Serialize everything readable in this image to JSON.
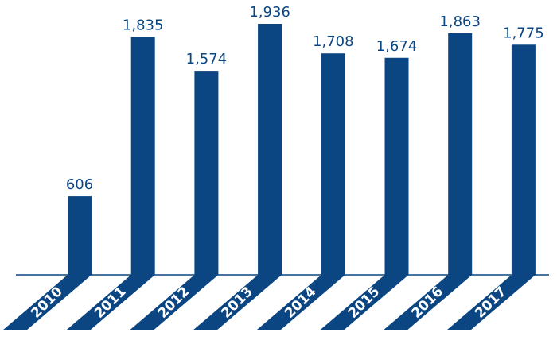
{
  "chart_data": {
    "type": "bar",
    "categories": [
      "2010",
      "2011",
      "2012",
      "2013",
      "2014",
      "2015",
      "2016",
      "2017"
    ],
    "values": [
      606,
      1835,
      1574,
      1936,
      1708,
      1674,
      1863,
      1775
    ],
    "value_labels": [
      "606",
      "1,835",
      "1,574",
      "1,936",
      "1,708",
      "1,674",
      "1,863",
      "1,775"
    ],
    "color": "#0b4682"
  }
}
